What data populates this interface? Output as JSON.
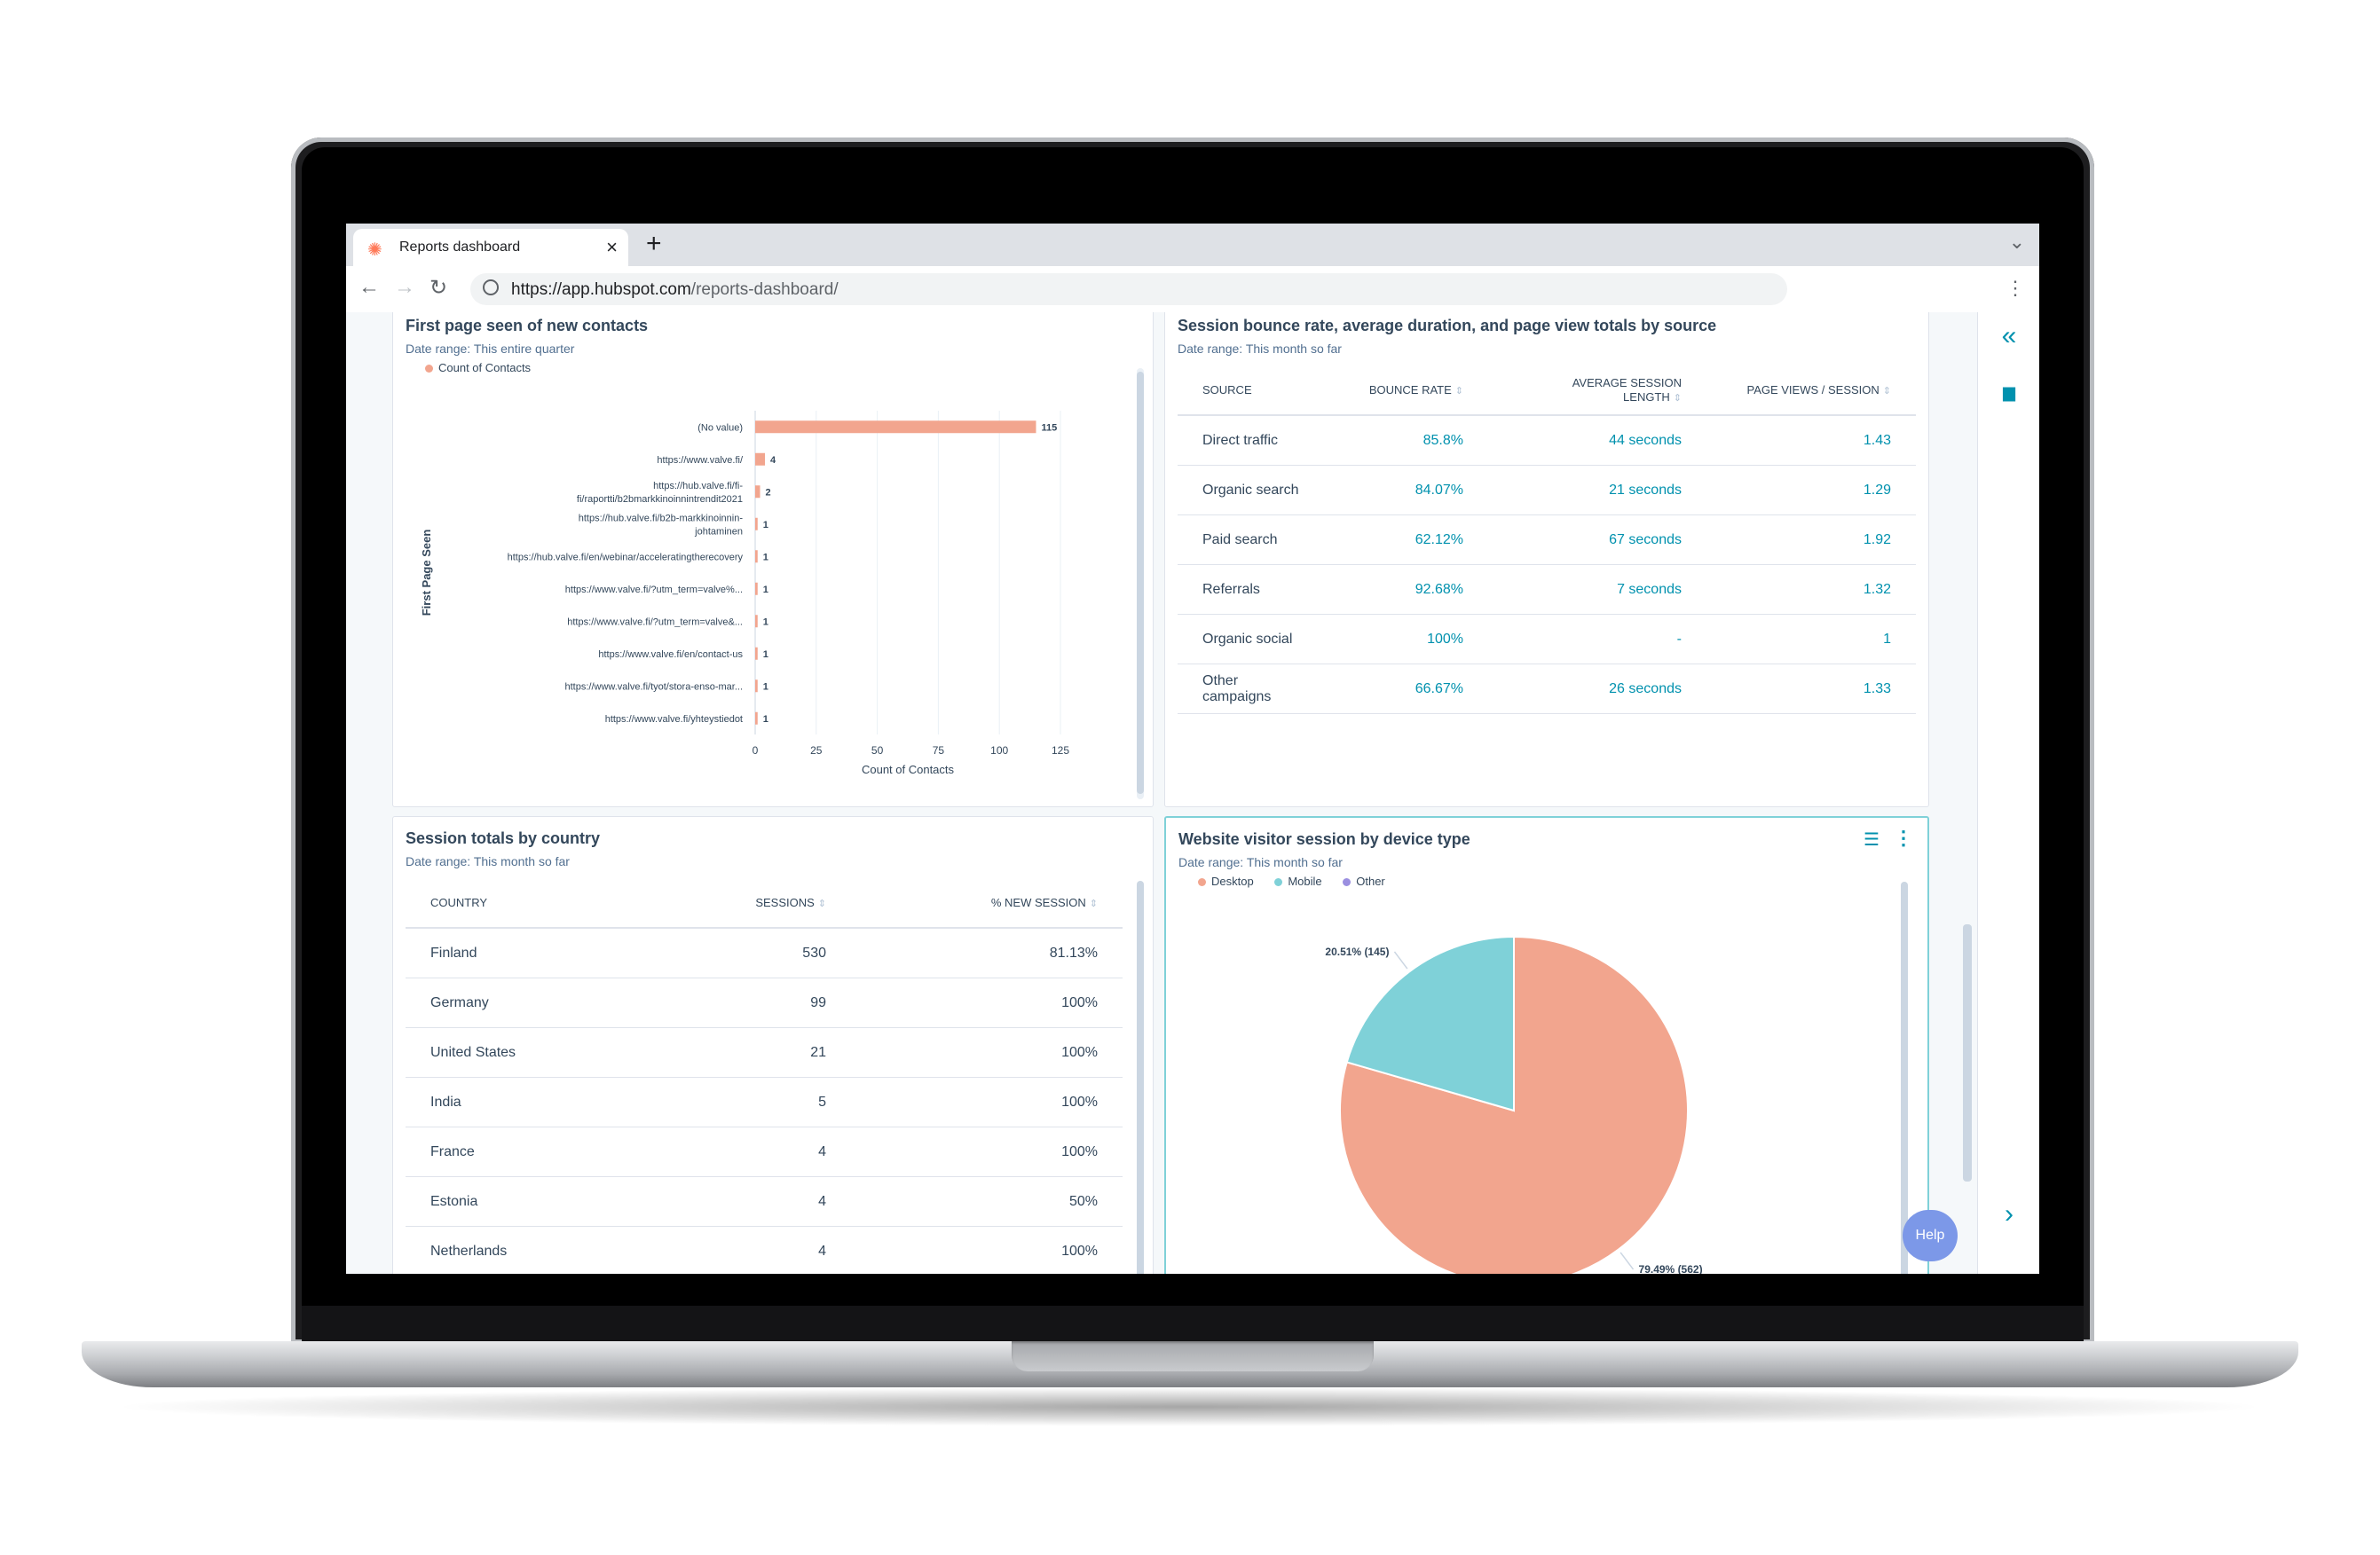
{
  "browser": {
    "tab_title": "Reports dashboard",
    "tab_close": "×",
    "new_tab": "+",
    "tab_menu": "⌄",
    "url_host": "https://app.hubspot.com",
    "url_path": "/reports-dashboard/",
    "menu": "⋮"
  },
  "cards": {
    "first_page": {
      "title": "First page seen of new contacts",
      "date_label": "Date range:",
      "date_value": "This entire quarter",
      "legend": "Count of Contacts"
    },
    "bounce": {
      "title": "Session bounce rate, average duration, and page view totals by source",
      "date_label": "Date range:",
      "date_value": "This month so far",
      "headers": [
        "SOURCE",
        "BOUNCE RATE",
        "AVERAGE SESSION LENGTH",
        "PAGE VIEWS / SESSION"
      ],
      "rows": [
        [
          "Direct traffic",
          "85.8%",
          "44 seconds",
          "1.43"
        ],
        [
          "Organic search",
          "84.07%",
          "21 seconds",
          "1.29"
        ],
        [
          "Paid search",
          "62.12%",
          "67 seconds",
          "1.92"
        ],
        [
          "Referrals",
          "92.68%",
          "7 seconds",
          "1.32"
        ],
        [
          "Organic social",
          "100%",
          "-",
          "1"
        ],
        [
          "Other campaigns",
          "66.67%",
          "26 seconds",
          "1.33"
        ]
      ]
    },
    "country": {
      "title": "Session totals by country",
      "date_label": "Date range:",
      "date_value": "This month so far",
      "headers": [
        "COUNTRY",
        "SESSIONS",
        "% NEW SESSION"
      ],
      "rows": [
        [
          "Finland",
          "530",
          "81.13%"
        ],
        [
          "Germany",
          "99",
          "100%"
        ],
        [
          "United States",
          "21",
          "100%"
        ],
        [
          "India",
          "5",
          "100%"
        ],
        [
          "France",
          "4",
          "100%"
        ],
        [
          "Estonia",
          "4",
          "50%"
        ],
        [
          "Netherlands",
          "4",
          "100%"
        ]
      ]
    },
    "device": {
      "title": "Website visitor session by device type",
      "date_label": "Date range:",
      "date_value": "This month so far",
      "legend": [
        "Desktop",
        "Mobile",
        "Other"
      ]
    }
  },
  "rail": {
    "collapse": "«",
    "chat": "💬",
    "next": "›"
  },
  "help_label": "Help",
  "colors": {
    "desktop": "#f2a58e",
    "mobile": "#7fd1d8",
    "other": "#9b8fe0",
    "accent": "#0091ae"
  },
  "chart_data": [
    {
      "type": "bar",
      "orientation": "horizontal",
      "categories": [
        "(No value)",
        "https://www.valve.fi/",
        "https://hub.valve.fi/fi-fi/raportti/b2bmarkkinoinnintrendit2021",
        "https://hub.valve.fi/b2b-markkinoinnin-johtaminen",
        "https://hub.valve.fi/en/webinar/acceleratingtherecovery",
        "https://www.valve.fi/?utm_term=valve%...",
        "https://www.valve.fi/?utm_term=valve&...",
        "https://www.valve.fi/en/contact-us",
        "https://www.valve.fi/tyot/stora-enso-mar...",
        "https://www.valve.fi/yhteystiedot"
      ],
      "category_lines": [
        [
          "(No value)"
        ],
        [
          "https://www.valve.fi/"
        ],
        [
          "https://hub.valve.fi/fi-",
          "fi/raportti/b2bmarkkinoinnintrendit2021"
        ],
        [
          "https://hub.valve.fi/b2b-markkinoinnin-",
          "johtaminen"
        ],
        [
          "https://hub.valve.fi/en/webinar/acceleratingtherecovery"
        ],
        [
          "https://www.valve.fi/?utm_term=valve%..."
        ],
        [
          "https://www.valve.fi/?utm_term=valve&..."
        ],
        [
          "https://www.valve.fi/en/contact-us"
        ],
        [
          "https://www.valve.fi/tyot/stora-enso-mar..."
        ],
        [
          "https://www.valve.fi/yhteystiedot"
        ]
      ],
      "values": [
        115,
        4,
        2,
        1,
        1,
        1,
        1,
        1,
        1,
        1
      ],
      "series": [
        {
          "name": "Count of Contacts",
          "values": [
            115,
            4,
            2,
            1,
            1,
            1,
            1,
            1,
            1,
            1
          ]
        }
      ],
      "xlabel": "Count of Contacts",
      "ylabel": "First Page Seen",
      "xticks": [
        0,
        25,
        50,
        75,
        100,
        125
      ],
      "xlim": [
        0,
        125
      ],
      "color": "#f2a58e",
      "grid": true
    },
    {
      "type": "pie",
      "labels": [
        "Desktop",
        "Mobile",
        "Other"
      ],
      "values": [
        562,
        145,
        0
      ],
      "percent": [
        79.49,
        20.51,
        0
      ],
      "data_labels": [
        "79.49% (562)",
        "20.51% (145)",
        ""
      ],
      "colors": [
        "#f2a58e",
        "#7fd1d8",
        "#9b8fe0"
      ],
      "legend": "top-left"
    }
  ]
}
